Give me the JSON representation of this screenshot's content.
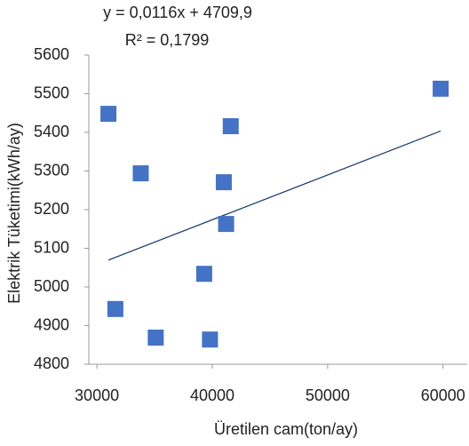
{
  "chart_data": {
    "type": "scatter",
    "equation": "y = 0,0116x + 4709,9",
    "r_squared": "R² = 0,1799",
    "xlabel": "Üretilen cam(ton/ay)",
    "ylabel": "Elektrik Tüketimi(kWh/ay)",
    "series": [
      {
        "name": "Elektrik Tüketimi",
        "color": "#4472c4",
        "x": [
          31000,
          31600,
          33800,
          35100,
          39300,
          39800,
          41000,
          41200,
          41600,
          59800
        ],
        "values": [
          5448,
          4943,
          5294,
          4869,
          5034,
          4864,
          5271,
          5163,
          5416,
          5513
        ]
      }
    ],
    "trendline": {
      "slope": 0.0116,
      "intercept": 4709.9,
      "color": "#1f3f6e"
    },
    "xlim": [
      29300,
      62100
    ],
    "xticks": [
      30000,
      40000,
      50000,
      60000
    ],
    "ylim": [
      4800,
      5600
    ],
    "yticks": [
      4800,
      4900,
      5000,
      5100,
      5200,
      5300,
      5400,
      5500,
      5600
    ],
    "grid": false
  }
}
